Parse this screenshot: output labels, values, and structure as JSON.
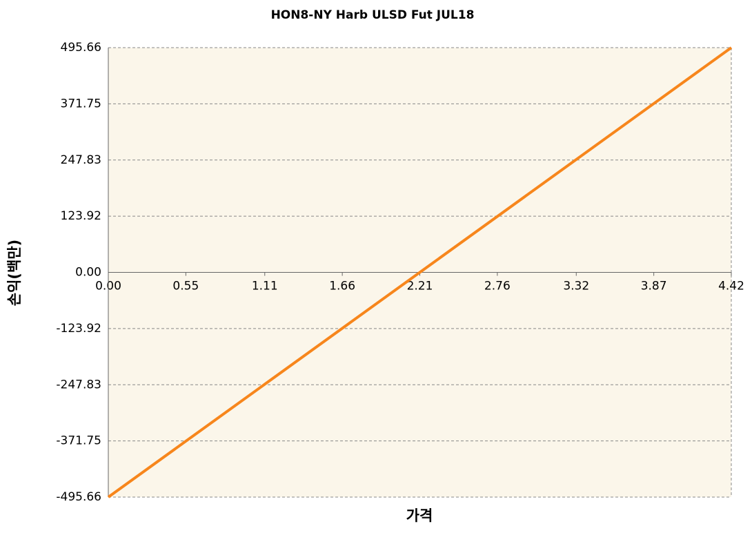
{
  "chart_data": {
    "type": "line",
    "title": "HON8-NY Harb ULSD Fut JUL18",
    "x_label": "가격",
    "y_label": "손익(백만)",
    "x": [
      0,
      2.21,
      4.42
    ],
    "values": [
      -495.66,
      0,
      495.66
    ],
    "color": "#f7861c",
    "xlim": [
      0,
      4.42
    ],
    "xticks": [
      {
        "value": 0,
        "label": "0.00"
      },
      0.55,
      1.11,
      1.66,
      2.21,
      2.76,
      3.32,
      3.87,
      4.42
    ],
    "ylim": [
      -495.66,
      495.66
    ],
    "yticks": [
      -495.66,
      -371.75,
      -247.83,
      -123.92,
      {
        "value": 0,
        "label": "0.00"
      },
      123.92,
      247.83,
      371.75,
      495.66
    ],
    "grid": true
  }
}
